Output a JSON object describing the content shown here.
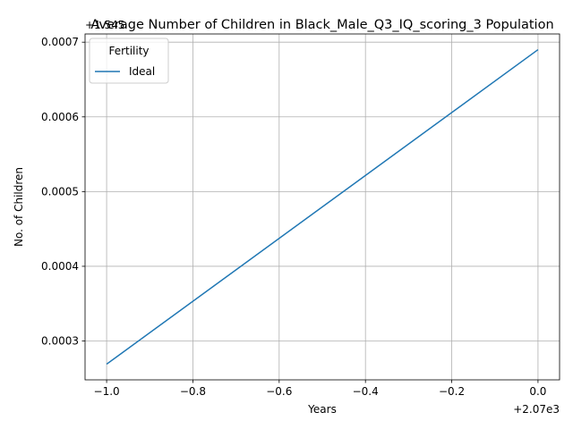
{
  "chart_data": {
    "type": "line",
    "title": "Average Number of Children in Black_Male_Q3_IQ_scoring_3 Population",
    "xlabel": "Years",
    "ylabel": "No. of Children",
    "x_offset_label": "+2.07e3",
    "y_offset_label": "+1.545",
    "x_ticks": [
      -1.0,
      -0.8,
      -0.6,
      -0.4,
      -0.2,
      0.0
    ],
    "x_tick_labels": [
      "−1.0",
      "−0.8",
      "−0.6",
      "−0.4",
      "−0.2",
      "0.0"
    ],
    "y_ticks": [
      0.0003,
      0.0004,
      0.0005,
      0.0006,
      0.0007
    ],
    "y_tick_labels": [
      "0.0003",
      "0.0004",
      "0.0005",
      "0.0006",
      "0.0007"
    ],
    "xlim": [
      -1.05,
      0.05
    ],
    "ylim": [
      0.000248,
      0.000711
    ],
    "grid": true,
    "legend": {
      "title": "Fertility",
      "position": "top-left"
    },
    "series": [
      {
        "name": "Ideal",
        "color": "#1f77b4",
        "x": [
          -1.0,
          0.0
        ],
        "y": [
          0.000269,
          0.00069
        ]
      }
    ]
  }
}
